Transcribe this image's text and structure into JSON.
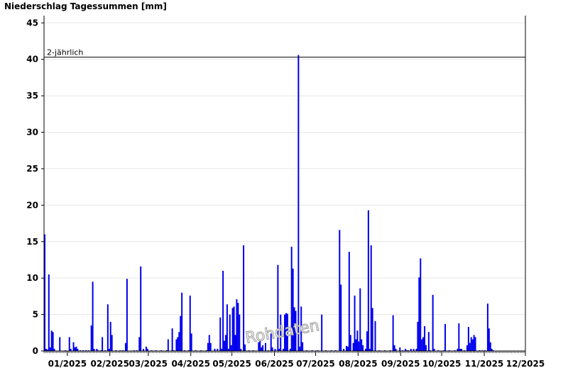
{
  "chart_data": {
    "type": "bar",
    "title": "Niederschlag Tagessummen [mm]",
    "ylim": [
      0,
      46
    ],
    "yticks": [
      0,
      5,
      10,
      15,
      20,
      25,
      30,
      35,
      40,
      45
    ],
    "grid": "horizontal",
    "bar_color": "#0000ee",
    "x_start": "2024-12-15",
    "x_end": "2025-12-01",
    "xtick_labels": [
      {
        "date": "2025-01-01",
        "label": "01/2025"
      },
      {
        "date": "2025-02-01",
        "label": "02/2025"
      },
      {
        "date": "2025-03-01",
        "label": "03/2025"
      },
      {
        "date": "2025-04-01",
        "label": "04/2025"
      },
      {
        "date": "2025-05-01",
        "label": "05/2025"
      },
      {
        "date": "2025-06-01",
        "label": "06/2025"
      },
      {
        "date": "2025-07-01",
        "label": "07/2025"
      },
      {
        "date": "2025-08-01",
        "label": "08/2025"
      },
      {
        "date": "2025-09-01",
        "label": "09/2025"
      },
      {
        "date": "2025-10-01",
        "label": "10/2025"
      },
      {
        "date": "2025-11-01",
        "label": "11/2025"
      },
      {
        "date": "2025-12-01",
        "label": "12/2025"
      }
    ],
    "reference_line": {
      "label": "2-jährlich",
      "value": 40.3
    },
    "watermark": "Rohdaten",
    "series": [
      {
        "values": [
          [
            "2024-12-15",
            16.0
          ],
          [
            "2024-12-16",
            0.3
          ],
          [
            "2024-12-17",
            0.2
          ],
          [
            "2024-12-18",
            10.5
          ],
          [
            "2024-12-19",
            0.5
          ],
          [
            "2024-12-20",
            2.8
          ],
          [
            "2024-12-21",
            2.6
          ],
          [
            "2024-12-22",
            0.3
          ],
          [
            "2024-12-26",
            1.9
          ],
          [
            "2024-12-30",
            0.1
          ],
          [
            "2025-01-02",
            1.9
          ],
          [
            "2025-01-03",
            0.3
          ],
          [
            "2025-01-05",
            1.2
          ],
          [
            "2025-01-06",
            0.5
          ],
          [
            "2025-01-07",
            0.6
          ],
          [
            "2025-01-08",
            0.3
          ],
          [
            "2025-01-10",
            0.1
          ],
          [
            "2025-01-12",
            0.1
          ],
          [
            "2025-01-14",
            0.1
          ],
          [
            "2025-01-16",
            0.1
          ],
          [
            "2025-01-18",
            3.5
          ],
          [
            "2025-01-19",
            9.5
          ],
          [
            "2025-01-20",
            0.3
          ],
          [
            "2025-01-22",
            0.3
          ],
          [
            "2025-01-23",
            0.1
          ],
          [
            "2025-01-25",
            0.1
          ],
          [
            "2025-01-26",
            1.9
          ],
          [
            "2025-01-28",
            0.1
          ],
          [
            "2025-01-30",
            6.4
          ],
          [
            "2025-01-31",
            0.3
          ],
          [
            "2025-02-01",
            4.0
          ],
          [
            "2025-02-02",
            2.2
          ],
          [
            "2025-02-05",
            0.1
          ],
          [
            "2025-02-08",
            0.1
          ],
          [
            "2025-02-10",
            0.1
          ],
          [
            "2025-02-12",
            1.1
          ],
          [
            "2025-02-13",
            9.9
          ],
          [
            "2025-02-18",
            0.1
          ],
          [
            "2025-02-20",
            0.1
          ],
          [
            "2025-02-22",
            1.9
          ],
          [
            "2025-02-23",
            11.6
          ],
          [
            "2025-02-25",
            0.3
          ],
          [
            "2025-02-27",
            0.6
          ],
          [
            "2025-02-28",
            0.3
          ],
          [
            "2025-03-03",
            0.1
          ],
          [
            "2025-03-06",
            0.1
          ],
          [
            "2025-03-10",
            0.1
          ],
          [
            "2025-03-14",
            0.1
          ],
          [
            "2025-03-15",
            1.6
          ],
          [
            "2025-03-18",
            3.1
          ],
          [
            "2025-03-19",
            0.1
          ],
          [
            "2025-03-21",
            1.6
          ],
          [
            "2025-03-22",
            1.9
          ],
          [
            "2025-03-23",
            2.6
          ],
          [
            "2025-03-24",
            4.8
          ],
          [
            "2025-03-25",
            8.0
          ],
          [
            "2025-03-27",
            0.1
          ],
          [
            "2025-03-30",
            0.1
          ],
          [
            "2025-03-31",
            7.6
          ],
          [
            "2025-04-01",
            2.4
          ],
          [
            "2025-04-04",
            0.1
          ],
          [
            "2025-04-08",
            0.1
          ],
          [
            "2025-04-12",
            0.1
          ],
          [
            "2025-04-13",
            1.1
          ],
          [
            "2025-04-14",
            2.2
          ],
          [
            "2025-04-15",
            1.1
          ],
          [
            "2025-04-18",
            0.3
          ],
          [
            "2025-04-20",
            0.3
          ],
          [
            "2025-04-22",
            4.6
          ],
          [
            "2025-04-23",
            0.3
          ],
          [
            "2025-04-24",
            11.0
          ],
          [
            "2025-04-25",
            1.4
          ],
          [
            "2025-04-26",
            2.2
          ],
          [
            "2025-04-27",
            6.4
          ],
          [
            "2025-04-28",
            0.3
          ],
          [
            "2025-04-29",
            5.0
          ],
          [
            "2025-04-30",
            0.8
          ],
          [
            "2025-05-01",
            5.9
          ],
          [
            "2025-05-02",
            6.1
          ],
          [
            "2025-05-03",
            2.2
          ],
          [
            "2025-05-04",
            7.1
          ],
          [
            "2025-05-05",
            6.6
          ],
          [
            "2025-05-06",
            5.0
          ],
          [
            "2025-05-07",
            0.3
          ],
          [
            "2025-05-09",
            14.5
          ],
          [
            "2025-05-10",
            0.9
          ],
          [
            "2025-05-13",
            0.1
          ],
          [
            "2025-05-16",
            0.1
          ],
          [
            "2025-05-20",
            1.2
          ],
          [
            "2025-05-21",
            1.6
          ],
          [
            "2025-05-22",
            0.5
          ],
          [
            "2025-05-23",
            0.8
          ],
          [
            "2025-05-25",
            1.1
          ],
          [
            "2025-05-27",
            0.1
          ],
          [
            "2025-05-29",
            2.4
          ],
          [
            "2025-05-30",
            0.5
          ],
          [
            "2025-06-01",
            0.3
          ],
          [
            "2025-06-03",
            11.8
          ],
          [
            "2025-06-04",
            0.3
          ],
          [
            "2025-06-05",
            5.0
          ],
          [
            "2025-06-07",
            0.3
          ],
          [
            "2025-06-08",
            5.0
          ],
          [
            "2025-06-09",
            5.2
          ],
          [
            "2025-06-10",
            5.1
          ],
          [
            "2025-06-12",
            0.3
          ],
          [
            "2025-06-13",
            14.3
          ],
          [
            "2025-06-14",
            11.3
          ],
          [
            "2025-06-15",
            6.0
          ],
          [
            "2025-06-16",
            5.5
          ],
          [
            "2025-06-18",
            40.6
          ],
          [
            "2025-06-19",
            0.6
          ],
          [
            "2025-06-20",
            6.1
          ],
          [
            "2025-06-21",
            1.2
          ],
          [
            "2025-06-24",
            0.1
          ],
          [
            "2025-06-28",
            0.1
          ],
          [
            "2025-07-02",
            0.1
          ],
          [
            "2025-07-05",
            5.0
          ],
          [
            "2025-07-08",
            0.1
          ],
          [
            "2025-07-12",
            0.1
          ],
          [
            "2025-07-15",
            0.1
          ],
          [
            "2025-07-18",
            16.6
          ],
          [
            "2025-07-19",
            9.1
          ],
          [
            "2025-07-21",
            0.3
          ],
          [
            "2025-07-23",
            0.7
          ],
          [
            "2025-07-24",
            0.6
          ],
          [
            "2025-07-25",
            13.6
          ],
          [
            "2025-07-26",
            2.2
          ],
          [
            "2025-07-28",
            1.1
          ],
          [
            "2025-07-29",
            7.6
          ],
          [
            "2025-07-30",
            1.6
          ],
          [
            "2025-07-31",
            2.8
          ],
          [
            "2025-08-01",
            1.3
          ],
          [
            "2025-08-02",
            8.6
          ],
          [
            "2025-08-03",
            1.6
          ],
          [
            "2025-08-04",
            0.8
          ],
          [
            "2025-08-06",
            0.3
          ],
          [
            "2025-08-07",
            2.7
          ],
          [
            "2025-08-08",
            19.3
          ],
          [
            "2025-08-09",
            0.3
          ],
          [
            "2025-08-10",
            14.5
          ],
          [
            "2025-08-11",
            5.9
          ],
          [
            "2025-08-13",
            4.1
          ],
          [
            "2025-08-16",
            0.1
          ],
          [
            "2025-08-20",
            0.1
          ],
          [
            "2025-08-24",
            0.1
          ],
          [
            "2025-08-26",
            4.9
          ],
          [
            "2025-08-27",
            0.8
          ],
          [
            "2025-08-28",
            0.3
          ],
          [
            "2025-08-31",
            0.5
          ],
          [
            "2025-09-02",
            0.1
          ],
          [
            "2025-09-04",
            0.3
          ],
          [
            "2025-09-05",
            0.1
          ],
          [
            "2025-09-06",
            0.1
          ],
          [
            "2025-09-08",
            0.3
          ],
          [
            "2025-09-10",
            0.3
          ],
          [
            "2025-09-12",
            0.3
          ],
          [
            "2025-09-13",
            4.0
          ],
          [
            "2025-09-14",
            10.1
          ],
          [
            "2025-09-15",
            12.7
          ],
          [
            "2025-09-16",
            1.6
          ],
          [
            "2025-09-17",
            1.9
          ],
          [
            "2025-09-18",
            3.4
          ],
          [
            "2025-09-19",
            0.8
          ],
          [
            "2025-09-21",
            2.6
          ],
          [
            "2025-09-22",
            0.1
          ],
          [
            "2025-09-24",
            7.7
          ],
          [
            "2025-09-25",
            0.3
          ],
          [
            "2025-09-28",
            0.1
          ],
          [
            "2025-10-02",
            0.1
          ],
          [
            "2025-10-03",
            3.7
          ],
          [
            "2025-10-06",
            0.1
          ],
          [
            "2025-10-10",
            0.1
          ],
          [
            "2025-10-12",
            0.3
          ],
          [
            "2025-10-13",
            3.8
          ],
          [
            "2025-10-14",
            0.3
          ],
          [
            "2025-10-15",
            0.3
          ],
          [
            "2025-10-17",
            0.1
          ],
          [
            "2025-10-19",
            0.8
          ],
          [
            "2025-10-20",
            3.3
          ],
          [
            "2025-10-21",
            1.1
          ],
          [
            "2025-10-22",
            1.9
          ],
          [
            "2025-10-23",
            1.6
          ],
          [
            "2025-10-24",
            2.2
          ],
          [
            "2025-10-25",
            1.9
          ],
          [
            "2025-10-28",
            0.1
          ],
          [
            "2025-10-30",
            0.1
          ],
          [
            "2025-11-01",
            0.1
          ],
          [
            "2025-11-03",
            6.5
          ],
          [
            "2025-11-04",
            3.1
          ],
          [
            "2025-11-05",
            1.2
          ],
          [
            "2025-11-06",
            0.3
          ],
          [
            "2025-11-07",
            0.1
          ]
        ]
      }
    ]
  }
}
